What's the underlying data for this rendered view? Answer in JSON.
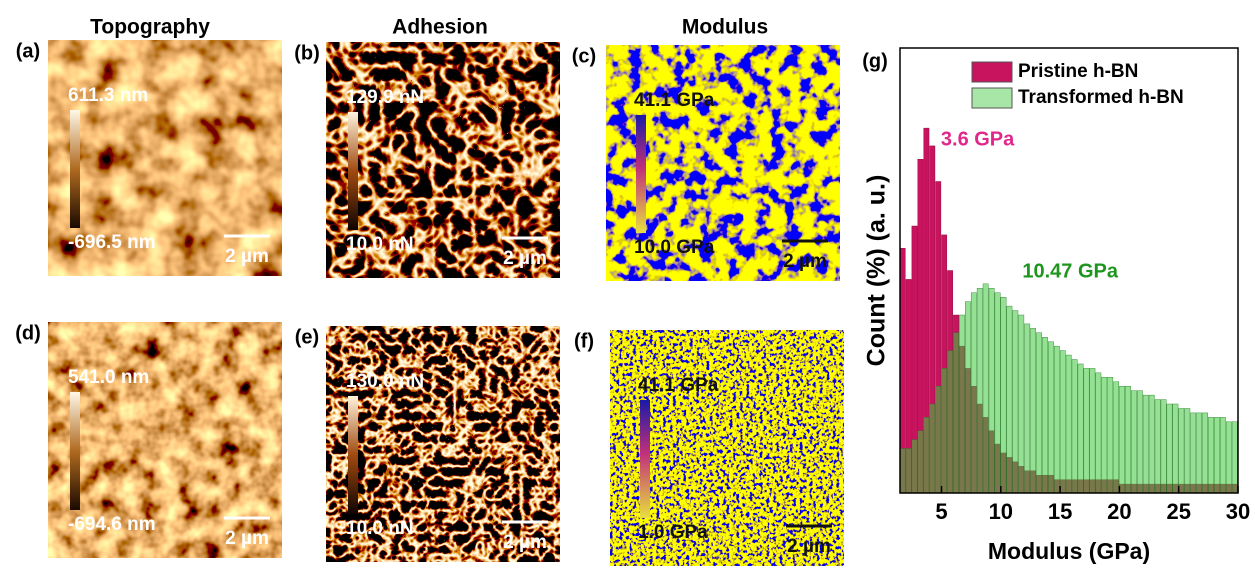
{
  "columns": [
    "Topography",
    "Adhesion",
    "Modulus"
  ],
  "panels": [
    {
      "label": "(a)",
      "top": "611.3 nm",
      "bottom": "-696.5 nm",
      "scale": "2 µm"
    },
    {
      "label": "(b)",
      "top": "129.9 nN",
      "bottom": "10.0 nN",
      "scale": "2 µm"
    },
    {
      "label": "(c)",
      "top": "41.1 GPa",
      "bottom": "10.0 GPa",
      "scale": "2 µm"
    },
    {
      "label": "(d)",
      "top": "541.0 nm",
      "bottom": "-694.6 nm",
      "scale": "2 µm"
    },
    {
      "label": "(e)",
      "top": "130.0 nN",
      "bottom": "10.0 nN",
      "scale": "2 µm"
    },
    {
      "label": "(f)",
      "top": "41.1 GPa",
      "bottom": "1.0 GPa",
      "scale": "2 µm"
    }
  ],
  "chart_data": {
    "type": "histogram",
    "panel_label": "(g)",
    "x_label": "Modulus (GPa)",
    "y_label": "Count (%) (a. u.)",
    "xlim": [
      1.5,
      30
    ],
    "ylim": [
      0,
      100
    ],
    "xticks": [
      5,
      10,
      15,
      20,
      25,
      30
    ],
    "bins": [
      1.5,
      2,
      2.5,
      3,
      3.5,
      4,
      4.5,
      5,
      5.5,
      6,
      6.5,
      7,
      7.5,
      8,
      8.5,
      9,
      9.5,
      10,
      10.5,
      11,
      11.5,
      12,
      12.5,
      13,
      13.5,
      14,
      14.5,
      15,
      15.5,
      16,
      16.5,
      17,
      17.5,
      18,
      18.5,
      19,
      19.5,
      20,
      20.5,
      21,
      21.5,
      22,
      22.5,
      23,
      23.5,
      24,
      24.5,
      25,
      25.5,
      26,
      26.5,
      27,
      27.5,
      28,
      28.5,
      29,
      29.5,
      30
    ],
    "series": [
      {
        "name": "Pristine h-BN",
        "color": "#c8145f",
        "values": [
          55,
          48,
          60,
          75,
          82,
          78,
          70,
          58,
          50,
          40,
          33,
          28,
          24,
          20,
          17,
          14,
          11,
          9,
          8,
          7,
          6,
          5,
          5,
          4,
          4,
          4,
          3,
          3,
          3,
          3,
          3,
          3,
          3,
          3,
          3,
          3,
          3,
          2,
          2,
          2,
          2,
          2,
          2,
          2,
          2,
          2,
          2,
          2,
          2,
          2,
          2,
          2,
          2,
          2,
          2,
          2,
          2
        ]
      },
      {
        "name": "Transformed h-BN",
        "color": "#3cc83c",
        "values": [
          10,
          10,
          12,
          14,
          17,
          20,
          24,
          28,
          32,
          36,
          40,
          43,
          45,
          46,
          47,
          46,
          45,
          44,
          42,
          41,
          40,
          38,
          37,
          36,
          35,
          34,
          33,
          32,
          31,
          30,
          29,
          28,
          28,
          27,
          26,
          26,
          25,
          24,
          24,
          23,
          23,
          22,
          22,
          21,
          21,
          20,
          20,
          19,
          19,
          18,
          18,
          18,
          17,
          17,
          17,
          16,
          16
        ]
      }
    ],
    "annotations": [
      {
        "text": "3.6 GPa",
        "x": 3.6,
        "color": "#e0288c"
      },
      {
        "text": "10.47 GPa",
        "x": 10.47,
        "color": "#1e961e"
      }
    ],
    "legend": "upper right"
  }
}
